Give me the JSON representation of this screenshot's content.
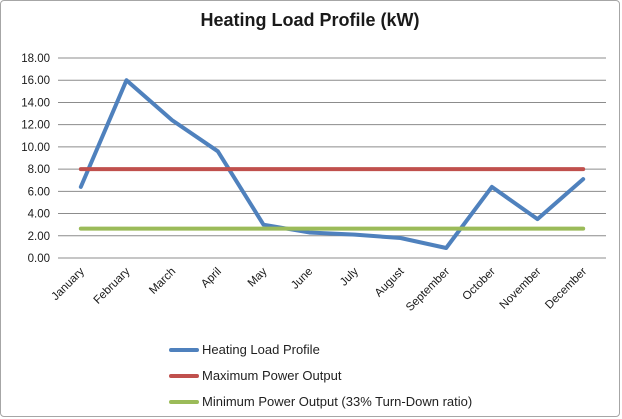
{
  "chart_data": {
    "type": "line",
    "title": "Heating Load Profile (kW)",
    "categories": [
      "January",
      "February",
      "March",
      "April",
      "May",
      "June",
      "July",
      "August",
      "September",
      "October",
      "November",
      "December"
    ],
    "series": [
      {
        "name": "Heating Load Profile",
        "color": "#4F81BD",
        "values": [
          6.4,
          16.0,
          12.4,
          9.6,
          3.0,
          2.3,
          2.1,
          1.8,
          0.9,
          6.4,
          3.5,
          7.1
        ]
      },
      {
        "name": "Maximum Power Output",
        "color": "#C0504D",
        "values": [
          8.0,
          8.0,
          8.0,
          8.0,
          8.0,
          8.0,
          8.0,
          8.0,
          8.0,
          8.0,
          8.0,
          8.0
        ]
      },
      {
        "name": "Minimum Power Output (33% Turn-Down ratio)",
        "color": "#9BBB59",
        "values": [
          2.64,
          2.64,
          2.64,
          2.64,
          2.64,
          2.64,
          2.64,
          2.64,
          2.64,
          2.64,
          2.64,
          2.64
        ]
      }
    ],
    "xlabel": "",
    "ylabel": "",
    "ylim": [
      0,
      18
    ],
    "ytick_step": 2,
    "ytick_labels": [
      "0.00",
      "2.00",
      "4.00",
      "6.00",
      "8.00",
      "10.00",
      "12.00",
      "14.00",
      "16.00",
      "18.00"
    ],
    "grid": "horizontal-only",
    "gridline_color": "#8C8C8C",
    "tick_label_color": "#1a1a1a",
    "legend_position": "bottom"
  }
}
